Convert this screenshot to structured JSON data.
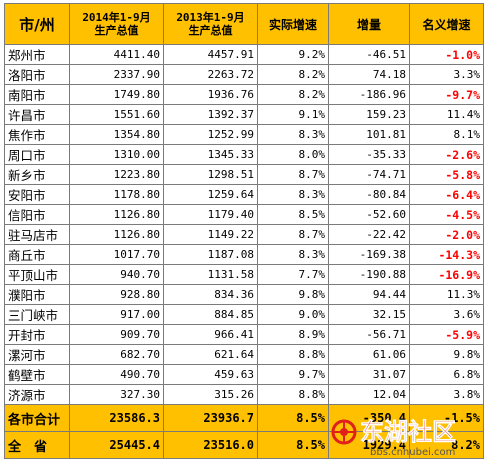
{
  "headers": {
    "city": "市/州",
    "y2014_line1": "2014年1-9月",
    "y2014_line2": "生产总值",
    "y2013_line1": "2013年1-9月",
    "y2013_line2": "生产总值",
    "real_growth": "实际增速",
    "increase": "增量",
    "nominal_growth": "名义增速"
  },
  "rows": [
    {
      "city": "郑州市",
      "gdp2014": "4411.40",
      "gdp2013": "4457.91",
      "real": "9.2%",
      "incr": "-46.51",
      "nominal": "-1.0%",
      "neg": true
    },
    {
      "city": "洛阳市",
      "gdp2014": "2337.90",
      "gdp2013": "2263.72",
      "real": "8.2%",
      "incr": "74.18",
      "nominal": "3.3%",
      "neg": false
    },
    {
      "city": "南阳市",
      "gdp2014": "1749.80",
      "gdp2013": "1936.76",
      "real": "8.2%",
      "incr": "-186.96",
      "nominal": "-9.7%",
      "neg": true
    },
    {
      "city": "许昌市",
      "gdp2014": "1551.60",
      "gdp2013": "1392.37",
      "real": "9.1%",
      "incr": "159.23",
      "nominal": "11.4%",
      "neg": false
    },
    {
      "city": "焦作市",
      "gdp2014": "1354.80",
      "gdp2013": "1252.99",
      "real": "8.3%",
      "incr": "101.81",
      "nominal": "8.1%",
      "neg": false
    },
    {
      "city": "周口市",
      "gdp2014": "1310.00",
      "gdp2013": "1345.33",
      "real": "8.0%",
      "incr": "-35.33",
      "nominal": "-2.6%",
      "neg": true
    },
    {
      "city": "新乡市",
      "gdp2014": "1223.80",
      "gdp2013": "1298.51",
      "real": "8.7%",
      "incr": "-74.71",
      "nominal": "-5.8%",
      "neg": true
    },
    {
      "city": "安阳市",
      "gdp2014": "1178.80",
      "gdp2013": "1259.64",
      "real": "8.3%",
      "incr": "-80.84",
      "nominal": "-6.4%",
      "neg": true
    },
    {
      "city": "信阳市",
      "gdp2014": "1126.80",
      "gdp2013": "1179.40",
      "real": "8.5%",
      "incr": "-52.60",
      "nominal": "-4.5%",
      "neg": true
    },
    {
      "city": "驻马店市",
      "gdp2014": "1126.80",
      "gdp2013": "1149.22",
      "real": "8.7%",
      "incr": "-22.42",
      "nominal": "-2.0%",
      "neg": true
    },
    {
      "city": "商丘市",
      "gdp2014": "1017.70",
      "gdp2013": "1187.08",
      "real": "8.3%",
      "incr": "-169.38",
      "nominal": "-14.3%",
      "neg": true
    },
    {
      "city": "平顶山市",
      "gdp2014": "940.70",
      "gdp2013": "1131.58",
      "real": "7.7%",
      "incr": "-190.88",
      "nominal": "-16.9%",
      "neg": true
    },
    {
      "city": "濮阳市",
      "gdp2014": "928.80",
      "gdp2013": "834.36",
      "real": "9.8%",
      "incr": "94.44",
      "nominal": "11.3%",
      "neg": false
    },
    {
      "city": "三门峡市",
      "gdp2014": "917.00",
      "gdp2013": "884.85",
      "real": "9.0%",
      "incr": "32.15",
      "nominal": "3.6%",
      "neg": false
    },
    {
      "city": "开封市",
      "gdp2014": "909.70",
      "gdp2013": "966.41",
      "real": "8.9%",
      "incr": "-56.71",
      "nominal": "-5.9%",
      "neg": true
    },
    {
      "city": "漯河市",
      "gdp2014": "682.70",
      "gdp2013": "621.64",
      "real": "8.8%",
      "incr": "61.06",
      "nominal": "9.8%",
      "neg": false
    },
    {
      "city": "鹤壁市",
      "gdp2014": "490.70",
      "gdp2013": "459.63",
      "real": "9.7%",
      "incr": "31.07",
      "nominal": "6.8%",
      "neg": false
    },
    {
      "city": "济源市",
      "gdp2014": "327.30",
      "gdp2013": "315.26",
      "real": "8.8%",
      "incr": "12.04",
      "nominal": "3.8%",
      "neg": false
    }
  ],
  "totals": [
    {
      "label": "各市合计",
      "gdp2014": "23586.3",
      "gdp2013": "23936.7",
      "real": "8.5%",
      "incr": "-350.4",
      "nominal": "-1.5%"
    },
    {
      "label": "全　省",
      "gdp2014": "25445.4",
      "gdp2013": "23516.0",
      "real": "8.5%",
      "incr": "1929.4",
      "nominal": "8.2%"
    }
  ],
  "watermark": {
    "logo_text": "东湖社区",
    "url": "bbs.cnhubei.com"
  },
  "colors": {
    "header_bg": "#ffc000",
    "negative": "#ff0000",
    "grid": "#7a7a7a",
    "watermark_red": "#e0201a"
  }
}
